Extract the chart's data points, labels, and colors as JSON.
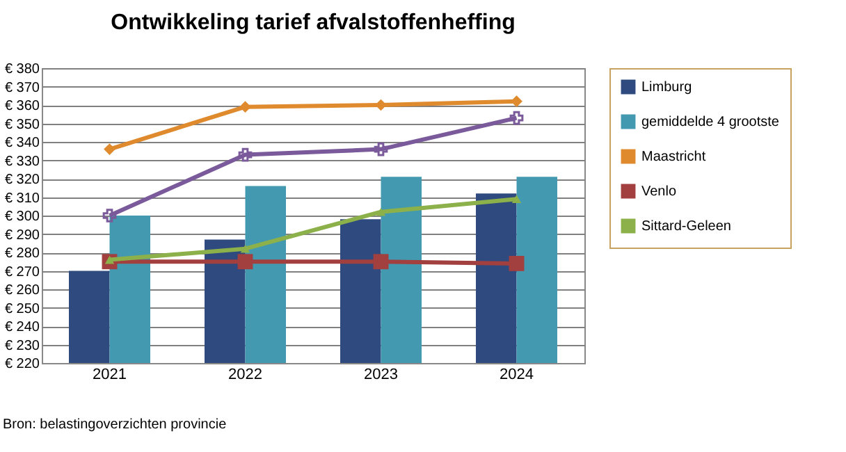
{
  "chart_data": {
    "type": "bar",
    "title": "Ontwikkeling tarief afvalstoffenheffing",
    "categories": [
      "2021",
      "2022",
      "2023",
      "2024"
    ],
    "series": [
      {
        "name": "Limburg",
        "color": "#2e4a7f",
        "values": [
          270,
          287,
          298,
          312
        ]
      },
      {
        "name": "gemiddelde 4 grootste",
        "color": "#4399b0",
        "values": [
          300,
          316,
          321,
          321
        ]
      },
      {
        "name": "Maastricht",
        "type": "line",
        "marker": "diamond",
        "color": "#e08a2e",
        "values": [
          336,
          359,
          360,
          362
        ]
      },
      {
        "type": "line",
        "marker": "cross",
        "color": "#7a5a9a",
        "values": [
          300,
          333,
          336,
          353
        ]
      },
      {
        "name": "Venlo",
        "type": "line",
        "marker": "square",
        "color": "#a23f3f",
        "values": [
          275,
          275,
          275,
          274
        ]
      },
      {
        "name": "Sittard-Geleen",
        "type": "line",
        "marker": "triangle",
        "color": "#8cb04a",
        "values": [
          276,
          282,
          302,
          309
        ]
      }
    ],
    "ylim": [
      220,
      380
    ],
    "yticks": [
      {
        "value": 220,
        "label": "€ 220"
      },
      {
        "value": 230,
        "label": "€ 230"
      },
      {
        "value": 240,
        "label": "€ 240"
      },
      {
        "value": 250,
        "label": "€ 250"
      },
      {
        "value": 260,
        "label": "€ 260"
      },
      {
        "value": 270,
        "label": "€ 270"
      },
      {
        "value": 280,
        "label": "€ 280"
      },
      {
        "value": 290,
        "label": "€ 290"
      },
      {
        "value": 300,
        "label": "€ 300"
      },
      {
        "value": 310,
        "label": "€ 310"
      },
      {
        "value": 320,
        "label": "€ 320"
      },
      {
        "value": 330,
        "label": "€ 330"
      },
      {
        "value": 340,
        "label": "€ 340"
      },
      {
        "value": 350,
        "label": "€ 350"
      },
      {
        "value": 360,
        "label": "€ 360"
      },
      {
        "value": 370,
        "label": "€ 370"
      },
      {
        "value": 380,
        "label": "€ 380"
      }
    ],
    "grid": "y",
    "legend": "right",
    "annotations": [
      "Bron: belastingoverzichten provincie"
    ]
  }
}
